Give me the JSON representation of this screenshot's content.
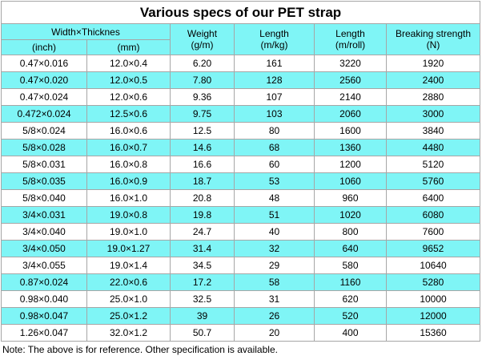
{
  "title": "Various specs of our PET strap",
  "headers": {
    "width_thickness": "Width×Thicknes",
    "inch": "(inch)",
    "mm": "(mm)",
    "weight": "Weight",
    "weight_unit": "(g/m)",
    "length_kg": "Length",
    "length_kg_unit": "(m/kg)",
    "length_roll": "Length",
    "length_roll_unit": "(m/roll)",
    "breaking": "Breaking strength",
    "breaking_unit": "(N)"
  },
  "rows": [
    {
      "inch": "0.47×0.016",
      "mm": "12.0×0.4",
      "weight": "6.20",
      "length_kg": "161",
      "length_roll": "3220",
      "breaking": "1920"
    },
    {
      "inch": "0.47×0.020",
      "mm": "12.0×0.5",
      "weight": "7.80",
      "length_kg": "128",
      "length_roll": "2560",
      "breaking": "2400"
    },
    {
      "inch": "0.47×0.024",
      "mm": "12.0×0.6",
      "weight": "9.36",
      "length_kg": "107",
      "length_roll": "2140",
      "breaking": "2880"
    },
    {
      "inch": "0.472×0.024",
      "mm": "12.5×0.6",
      "weight": "9.75",
      "length_kg": "103",
      "length_roll": "2060",
      "breaking": "3000"
    },
    {
      "inch": "5/8×0.024",
      "mm": "16.0×0.6",
      "weight": "12.5",
      "length_kg": "80",
      "length_roll": "1600",
      "breaking": "3840"
    },
    {
      "inch": "5/8×0.028",
      "mm": "16.0×0.7",
      "weight": "14.6",
      "length_kg": "68",
      "length_roll": "1360",
      "breaking": "4480"
    },
    {
      "inch": "5/8×0.031",
      "mm": "16.0×0.8",
      "weight": "16.6",
      "length_kg": "60",
      "length_roll": "1200",
      "breaking": "5120"
    },
    {
      "inch": "5/8×0.035",
      "mm": "16.0×0.9",
      "weight": "18.7",
      "length_kg": "53",
      "length_roll": "1060",
      "breaking": "5760"
    },
    {
      "inch": "5/8×0.040",
      "mm": "16.0×1.0",
      "weight": "20.8",
      "length_kg": "48",
      "length_roll": "960",
      "breaking": "6400"
    },
    {
      "inch": "3/4×0.031",
      "mm": "19.0×0.8",
      "weight": "19.8",
      "length_kg": "51",
      "length_roll": "1020",
      "breaking": "6080"
    },
    {
      "inch": "3/4×0.040",
      "mm": "19.0×1.0",
      "weight": "24.7",
      "length_kg": "40",
      "length_roll": "800",
      "breaking": "7600"
    },
    {
      "inch": "3/4×0.050",
      "mm": "19.0×1.27",
      "weight": "31.4",
      "length_kg": "32",
      "length_roll": "640",
      "breaking": "9652"
    },
    {
      "inch": "3/4×0.055",
      "mm": "19.0×1.4",
      "weight": "34.5",
      "length_kg": "29",
      "length_roll": "580",
      "breaking": "10640"
    },
    {
      "inch": "0.87×0.024",
      "mm": "22.0×0.6",
      "weight": "17.2",
      "length_kg": "58",
      "length_roll": "1160",
      "breaking": "5280"
    },
    {
      "inch": "0.98×0.040",
      "mm": "25.0×1.0",
      "weight": "32.5",
      "length_kg": "31",
      "length_roll": "620",
      "breaking": "10000"
    },
    {
      "inch": "0.98×0.047",
      "mm": "25.0×1.2",
      "weight": "39",
      "length_kg": "26",
      "length_roll": "520",
      "breaking": "12000"
    },
    {
      "inch": "1.26×0.047",
      "mm": "32.0×1.2",
      "weight": "50.7",
      "length_kg": "20",
      "length_roll": "400",
      "breaking": "15360"
    }
  ],
  "note": "Note: The above is for reference. Other specification is available.",
  "colors": {
    "accent_cyan": "#7ff5f6",
    "border": "#a6a6a6",
    "background": "#ffffff"
  }
}
